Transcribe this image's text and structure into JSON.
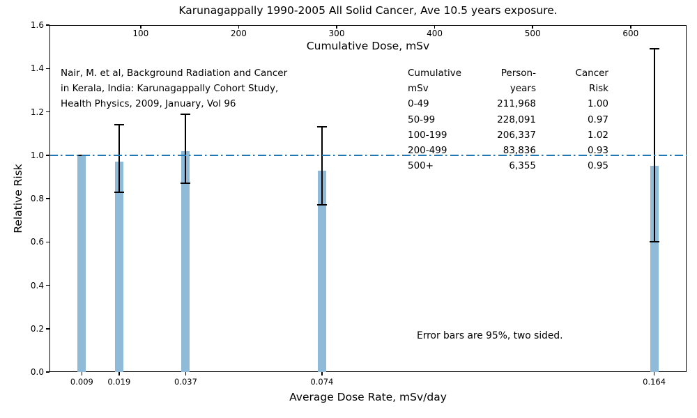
{
  "chart_data": {
    "type": "bar",
    "title": "Karunagappally 1990-2005 All Solid Cancer, Ave 10.5 years exposure.",
    "top_xlabel": "Cumulative Dose, mSv",
    "bottom_xlabel": "Average Dose Rate, mSv/day",
    "ylabel": "Relative Risk",
    "xlim_cumulative_mSv": [
      7,
      657
    ],
    "ylim": [
      0,
      1.6
    ],
    "top_xticks": [
      100,
      200,
      300,
      400,
      500,
      600
    ],
    "yticks": [
      "0.0",
      "0.2",
      "0.4",
      "0.6",
      "0.8",
      "1.0",
      "1.2",
      "1.4",
      "1.6"
    ],
    "reference_line_y": 1.0,
    "grid": false,
    "legend": "none",
    "bar_color": "#8fbbd9",
    "line_color": "#1f77b4",
    "error_color": "#000000",
    "bars": [
      {
        "dose_rate_label": "0.009",
        "x_cumulative_mSv": 40,
        "relative_risk": 1.0,
        "ci_low": 1.0,
        "ci_high": 1.0
      },
      {
        "dose_rate_label": "0.019",
        "x_cumulative_mSv": 78,
        "relative_risk": 0.97,
        "ci_low": 0.83,
        "ci_high": 1.14
      },
      {
        "dose_rate_label": "0.037",
        "x_cumulative_mSv": 146,
        "relative_risk": 1.02,
        "ci_low": 0.87,
        "ci_high": 1.19
      },
      {
        "dose_rate_label": "0.074",
        "x_cumulative_mSv": 285,
        "relative_risk": 0.93,
        "ci_low": 0.77,
        "ci_high": 1.13
      },
      {
        "dose_rate_label": "0.164",
        "x_cumulative_mSv": 624,
        "relative_risk": 0.95,
        "ci_low": 0.6,
        "ci_high": 1.49
      }
    ],
    "annotations": {
      "citation_lines": [
        "Nair, M. et al, Background Radiation and Cancer",
        "in Kerala, India: Karunagappally Cohort Study,",
        "Health Physics, 2009, January, Vol 96"
      ],
      "error_note": "Error bars are 95%, two sided."
    },
    "table": {
      "col1_header": [
        "Cumulative",
        "mSv"
      ],
      "col2_header": [
        "Person-",
        "years"
      ],
      "col3_header": [
        "Cancer",
        "Risk"
      ],
      "rows": [
        [
          "0-49",
          "211,968",
          "1.00"
        ],
        [
          "50-99",
          "228,091",
          "0.97"
        ],
        [
          "100-199",
          "206,337",
          "1.02"
        ],
        [
          "200-499",
          "83,836",
          "0.93"
        ],
        [
          "500+",
          "6,355",
          "0.95"
        ]
      ]
    }
  }
}
